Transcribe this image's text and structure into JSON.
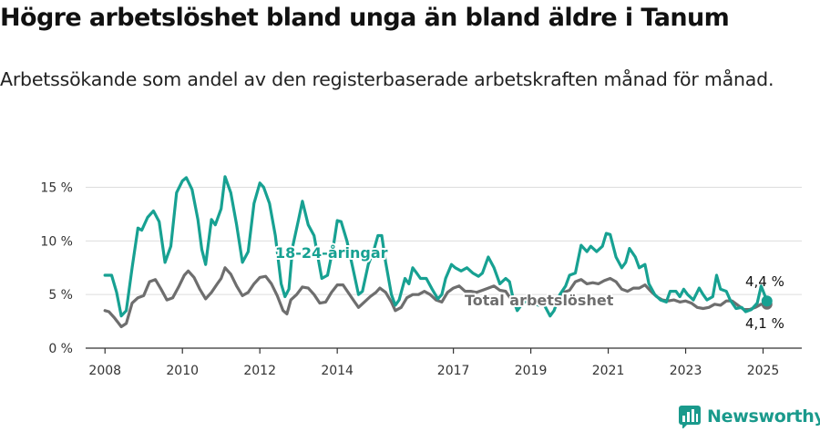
{
  "header": {
    "title": "Högre arbetslöshet bland unga än bland äldre i Tanum",
    "subtitle": "Arbetssökande som andel av den registerbaserade arbetskraften månad för månad."
  },
  "brand": {
    "name": "Newsworthy",
    "icon": "newsworthy-logo-icon"
  },
  "colors": {
    "youth": "#17a192",
    "total": "#6e6e6e",
    "grid": "#dddddd",
    "axis": "#333333"
  },
  "chart_data": {
    "type": "line",
    "x_unit": "year (decimal, monthly)",
    "y_unit": "%",
    "ylim": [
      0,
      17
    ],
    "xlim": [
      2007.5,
      2026
    ],
    "yticks": [
      0,
      5,
      10,
      15
    ],
    "ytick_labels": [
      "0 %",
      "5 %",
      "10 %",
      "15 %"
    ],
    "xticks": [
      2008,
      2010,
      2012,
      2014,
      2017,
      2019,
      2021,
      2023,
      2025
    ],
    "xtick_labels": [
      "2008",
      "2010",
      "2012",
      "2014",
      "2017",
      "2019",
      "2021",
      "2023",
      "2025"
    ],
    "grid": true,
    "legend": "inline labels",
    "series": [
      {
        "name": "18-24-åringar",
        "color": "#17a192",
        "last_value_label": "4,4 %",
        "points": [
          [
            2008.0,
            6.8
          ],
          [
            2008.17,
            6.8
          ],
          [
            2008.3,
            5.2
          ],
          [
            2008.42,
            3.0
          ],
          [
            2008.55,
            3.5
          ],
          [
            2008.7,
            7.5
          ],
          [
            2008.85,
            11.2
          ],
          [
            2008.95,
            11.0
          ],
          [
            2009.1,
            12.2
          ],
          [
            2009.25,
            12.8
          ],
          [
            2009.4,
            11.8
          ],
          [
            2009.55,
            8.0
          ],
          [
            2009.7,
            9.5
          ],
          [
            2009.85,
            14.5
          ],
          [
            2010.0,
            15.6
          ],
          [
            2010.1,
            15.9
          ],
          [
            2010.25,
            14.8
          ],
          [
            2010.4,
            12.0
          ],
          [
            2010.5,
            9.2
          ],
          [
            2010.6,
            7.8
          ],
          [
            2010.75,
            12.0
          ],
          [
            2010.85,
            11.5
          ],
          [
            2011.0,
            13.0
          ],
          [
            2011.1,
            16.0
          ],
          [
            2011.25,
            14.5
          ],
          [
            2011.4,
            11.5
          ],
          [
            2011.55,
            8.0
          ],
          [
            2011.7,
            9.0
          ],
          [
            2011.85,
            13.5
          ],
          [
            2012.0,
            15.4
          ],
          [
            2012.1,
            15.0
          ],
          [
            2012.25,
            13.5
          ],
          [
            2012.4,
            10.5
          ],
          [
            2012.55,
            6.0
          ],
          [
            2012.65,
            4.8
          ],
          [
            2012.75,
            5.5
          ],
          [
            2012.85,
            9.5
          ],
          [
            2013.0,
            12.0
          ],
          [
            2013.1,
            13.7
          ],
          [
            2013.25,
            11.5
          ],
          [
            2013.4,
            10.5
          ],
          [
            2013.5,
            8.5
          ],
          [
            2013.6,
            6.5
          ],
          [
            2013.75,
            6.8
          ],
          [
            2013.9,
            9.5
          ],
          [
            2014.0,
            11.9
          ],
          [
            2014.1,
            11.8
          ],
          [
            2014.25,
            10.0
          ],
          [
            2014.4,
            7.5
          ],
          [
            2014.55,
            5.0
          ],
          [
            2014.65,
            5.3
          ],
          [
            2014.8,
            7.8
          ],
          [
            2014.95,
            9.2
          ],
          [
            2015.05,
            10.5
          ],
          [
            2015.15,
            10.5
          ],
          [
            2015.25,
            8.0
          ],
          [
            2015.4,
            5.0
          ],
          [
            2015.5,
            4.0
          ],
          [
            2015.6,
            4.5
          ],
          [
            2015.75,
            6.5
          ],
          [
            2015.85,
            6.0
          ],
          [
            2015.95,
            7.5
          ],
          [
            2016.05,
            7.0
          ],
          [
            2016.15,
            6.5
          ],
          [
            2016.3,
            6.5
          ],
          [
            2016.45,
            5.5
          ],
          [
            2016.6,
            4.6
          ],
          [
            2016.7,
            5.0
          ],
          [
            2016.8,
            6.5
          ],
          [
            2016.95,
            7.8
          ],
          [
            2017.05,
            7.5
          ],
          [
            2017.2,
            7.2
          ],
          [
            2017.35,
            7.5
          ],
          [
            2017.5,
            7.0
          ],
          [
            2017.65,
            6.7
          ],
          [
            2017.75,
            7.0
          ],
          [
            2017.9,
            8.5
          ],
          [
            2018.05,
            7.5
          ],
          [
            2018.2,
            6.0
          ],
          [
            2018.35,
            6.5
          ],
          [
            2018.45,
            6.2
          ],
          [
            2018.55,
            4.5
          ],
          [
            2018.65,
            3.5
          ],
          [
            2018.75,
            4.0
          ],
          [
            2018.9,
            4.5
          ],
          [
            2019.05,
            4.2
          ],
          [
            2019.2,
            4.0
          ],
          [
            2019.35,
            4.0
          ],
          [
            2019.5,
            3.0
          ],
          [
            2019.6,
            3.5
          ],
          [
            2019.75,
            5.0
          ],
          [
            2019.9,
            5.8
          ],
          [
            2020.0,
            6.8
          ],
          [
            2020.15,
            7.0
          ],
          [
            2020.3,
            9.6
          ],
          [
            2020.45,
            9.0
          ],
          [
            2020.55,
            9.5
          ],
          [
            2020.7,
            9.0
          ],
          [
            2020.85,
            9.5
          ],
          [
            2020.95,
            10.7
          ],
          [
            2021.05,
            10.6
          ],
          [
            2021.2,
            8.5
          ],
          [
            2021.35,
            7.5
          ],
          [
            2021.45,
            8.0
          ],
          [
            2021.55,
            9.3
          ],
          [
            2021.7,
            8.5
          ],
          [
            2021.8,
            7.5
          ],
          [
            2021.95,
            7.8
          ],
          [
            2022.05,
            6.0
          ],
          [
            2022.2,
            5.0
          ],
          [
            2022.35,
            4.5
          ],
          [
            2022.5,
            4.3
          ],
          [
            2022.6,
            5.3
          ],
          [
            2022.75,
            5.3
          ],
          [
            2022.85,
            4.8
          ],
          [
            2022.95,
            5.5
          ],
          [
            2023.05,
            5.0
          ],
          [
            2023.2,
            4.5
          ],
          [
            2023.35,
            5.6
          ],
          [
            2023.45,
            5.0
          ],
          [
            2023.55,
            4.5
          ],
          [
            2023.7,
            4.8
          ],
          [
            2023.8,
            6.8
          ],
          [
            2023.9,
            5.5
          ],
          [
            2024.05,
            5.3
          ],
          [
            2024.15,
            4.5
          ],
          [
            2024.3,
            3.7
          ],
          [
            2024.45,
            3.8
          ],
          [
            2024.55,
            3.4
          ],
          [
            2024.7,
            3.6
          ],
          [
            2024.85,
            4.2
          ],
          [
            2024.95,
            5.8
          ],
          [
            2025.1,
            4.4
          ]
        ]
      },
      {
        "name": "Total arbetslöshet",
        "color": "#6e6e6e",
        "last_value_label": "4,1 %",
        "points": [
          [
            2008.0,
            3.5
          ],
          [
            2008.1,
            3.4
          ],
          [
            2008.25,
            2.8
          ],
          [
            2008.42,
            2.0
          ],
          [
            2008.55,
            2.3
          ],
          [
            2008.7,
            4.2
          ],
          [
            2008.85,
            4.7
          ],
          [
            2009.0,
            4.9
          ],
          [
            2009.15,
            6.2
          ],
          [
            2009.3,
            6.4
          ],
          [
            2009.45,
            5.5
          ],
          [
            2009.6,
            4.5
          ],
          [
            2009.75,
            4.7
          ],
          [
            2009.9,
            5.7
          ],
          [
            2010.05,
            6.8
          ],
          [
            2010.15,
            7.2
          ],
          [
            2010.3,
            6.6
          ],
          [
            2010.45,
            5.5
          ],
          [
            2010.6,
            4.6
          ],
          [
            2010.75,
            5.2
          ],
          [
            2010.9,
            6.0
          ],
          [
            2011.0,
            6.5
          ],
          [
            2011.1,
            7.5
          ],
          [
            2011.25,
            6.9
          ],
          [
            2011.4,
            5.8
          ],
          [
            2011.55,
            4.9
          ],
          [
            2011.7,
            5.2
          ],
          [
            2011.85,
            6.0
          ],
          [
            2012.0,
            6.6
          ],
          [
            2012.15,
            6.7
          ],
          [
            2012.3,
            6.0
          ],
          [
            2012.45,
            4.9
          ],
          [
            2012.6,
            3.5
          ],
          [
            2012.7,
            3.2
          ],
          [
            2012.8,
            4.5
          ],
          [
            2012.95,
            5.0
          ],
          [
            2013.1,
            5.7
          ],
          [
            2013.25,
            5.6
          ],
          [
            2013.4,
            5.0
          ],
          [
            2013.55,
            4.2
          ],
          [
            2013.7,
            4.3
          ],
          [
            2013.85,
            5.2
          ],
          [
            2014.0,
            5.9
          ],
          [
            2014.15,
            5.9
          ],
          [
            2014.3,
            5.1
          ],
          [
            2014.45,
            4.3
          ],
          [
            2014.55,
            3.8
          ],
          [
            2014.7,
            4.3
          ],
          [
            2014.85,
            4.8
          ],
          [
            2015.0,
            5.2
          ],
          [
            2015.1,
            5.6
          ],
          [
            2015.25,
            5.2
          ],
          [
            2015.4,
            4.3
          ],
          [
            2015.5,
            3.5
          ],
          [
            2015.65,
            3.8
          ],
          [
            2015.8,
            4.7
          ],
          [
            2015.95,
            5.0
          ],
          [
            2016.1,
            5.0
          ],
          [
            2016.25,
            5.3
          ],
          [
            2016.4,
            5.0
          ],
          [
            2016.55,
            4.5
          ],
          [
            2016.7,
            4.3
          ],
          [
            2016.85,
            5.2
          ],
          [
            2017.0,
            5.6
          ],
          [
            2017.15,
            5.8
          ],
          [
            2017.3,
            5.3
          ],
          [
            2017.45,
            5.3
          ],
          [
            2017.6,
            5.2
          ],
          [
            2017.75,
            5.4
          ],
          [
            2017.9,
            5.6
          ],
          [
            2018.05,
            5.8
          ],
          [
            2018.2,
            5.4
          ],
          [
            2018.35,
            5.3
          ],
          [
            2018.5,
            4.5
          ],
          [
            2018.65,
            4.3
          ],
          [
            2018.8,
            4.5
          ],
          [
            2018.95,
            4.5
          ],
          [
            2019.1,
            4.4
          ],
          [
            2019.25,
            4.5
          ],
          [
            2019.4,
            4.3
          ],
          [
            2019.55,
            4.0
          ],
          [
            2019.7,
            4.5
          ],
          [
            2019.85,
            5.2
          ],
          [
            2020.0,
            5.4
          ],
          [
            2020.15,
            6.2
          ],
          [
            2020.3,
            6.4
          ],
          [
            2020.45,
            6.0
          ],
          [
            2020.6,
            6.1
          ],
          [
            2020.75,
            6.0
          ],
          [
            2020.9,
            6.3
          ],
          [
            2021.05,
            6.5
          ],
          [
            2021.2,
            6.2
          ],
          [
            2021.35,
            5.5
          ],
          [
            2021.5,
            5.3
          ],
          [
            2021.65,
            5.6
          ],
          [
            2021.8,
            5.6
          ],
          [
            2021.95,
            5.9
          ],
          [
            2022.1,
            5.3
          ],
          [
            2022.25,
            4.8
          ],
          [
            2022.4,
            4.5
          ],
          [
            2022.55,
            4.4
          ],
          [
            2022.7,
            4.5
          ],
          [
            2022.85,
            4.3
          ],
          [
            2023.0,
            4.4
          ],
          [
            2023.15,
            4.2
          ],
          [
            2023.3,
            3.8
          ],
          [
            2023.45,
            3.7
          ],
          [
            2023.6,
            3.8
          ],
          [
            2023.75,
            4.1
          ],
          [
            2023.9,
            4.0
          ],
          [
            2024.05,
            4.4
          ],
          [
            2024.2,
            4.4
          ],
          [
            2024.35,
            4.0
          ],
          [
            2024.5,
            3.6
          ],
          [
            2024.65,
            3.6
          ],
          [
            2024.8,
            3.8
          ],
          [
            2024.95,
            4.1
          ],
          [
            2025.1,
            4.1
          ]
        ]
      }
    ],
    "series_labels": {
      "youth": "18-24-åringar",
      "total": "Total arbetslöshet"
    }
  }
}
